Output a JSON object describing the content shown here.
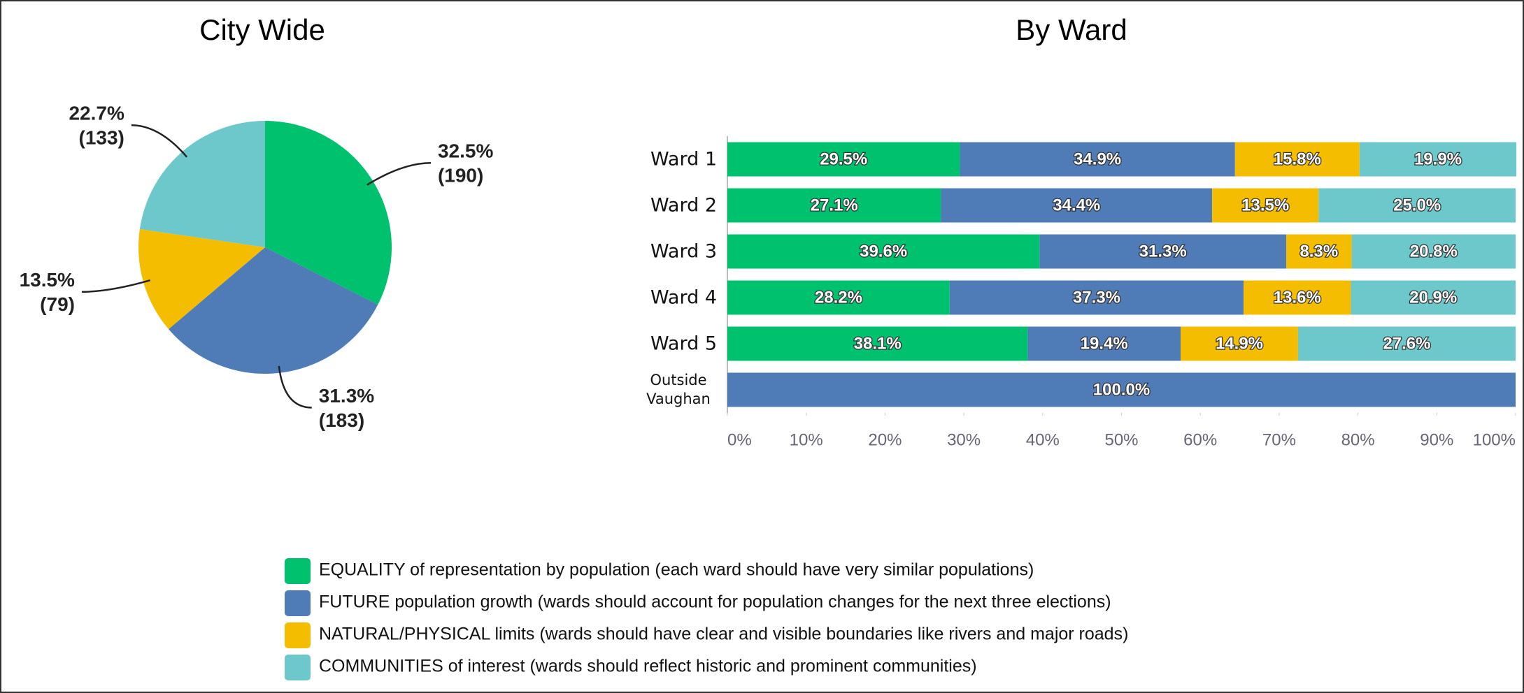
{
  "chart_data": [
    {
      "type": "pie",
      "title": "City Wide",
      "values": [
        32.5,
        31.3,
        13.5,
        22.7
      ],
      "value_labels": [
        "32.5%",
        "31.3%",
        "13.5%",
        "22.7%"
      ],
      "counts": [
        190,
        183,
        79,
        133
      ],
      "count_labels": [
        "(190)",
        "(183)",
        "(79)",
        "(133)"
      ],
      "colors": [
        "#00c16e",
        "#4f7bb7",
        "#f5bd00",
        "#6cc8ca"
      ]
    },
    {
      "type": "stacked_barh",
      "title": "By Ward",
      "categories": [
        "Ward 1",
        "Ward 2",
        "Ward 3",
        "Ward 4",
        "Ward 5",
        "Outside Vaughan"
      ],
      "series": [
        {
          "name": "EQUALITY of representation by population (each ward should have very similar populations)",
          "color": "#00c16e",
          "values": [
            29.5,
            27.1,
            39.6,
            28.2,
            38.1,
            null
          ],
          "value_labels": [
            "29.5%",
            "27.1%",
            "39.6%",
            "28.2%",
            "38.1%",
            null
          ]
        },
        {
          "name": "FUTURE population growth (wards should account for population changes for the next three elections)",
          "color": "#4f7bb7",
          "values": [
            34.9,
            34.4,
            31.3,
            37.3,
            19.4,
            100.0
          ],
          "value_labels": [
            "34.9%",
            "34.4%",
            "31.3%",
            "37.3%",
            "19.4%",
            "100.0%"
          ]
        },
        {
          "name": "NATURAL/PHYSICAL limits (wards should have clear and visible boundaries like rivers and major roads)",
          "color": "#f5bd00",
          "values": [
            15.8,
            13.5,
            8.3,
            13.6,
            14.9,
            null
          ],
          "value_labels": [
            "15.8%",
            "13.5%",
            "8.3%",
            "13.6%",
            "14.9%",
            null
          ]
        },
        {
          "name": "COMMUNITIES of interest (wards should reflect historic and prominent communities)",
          "color": "#6cc8ca",
          "values": [
            19.9,
            25.0,
            20.8,
            20.9,
            27.6,
            null
          ],
          "value_labels": [
            "19.9%",
            "25.0%",
            "20.8%",
            "20.9%",
            "27.6%",
            null
          ]
        }
      ],
      "xlim": [
        0,
        100
      ],
      "xticks": [
        {
          "value": 0,
          "label": "0%"
        },
        {
          "value": 10,
          "label": "10%"
        },
        {
          "value": 20,
          "label": "20%"
        },
        {
          "value": 30,
          "label": "30%"
        },
        {
          "value": 40,
          "label": "40%"
        },
        {
          "value": 50,
          "label": "50%"
        },
        {
          "value": 60,
          "label": "60%"
        },
        {
          "value": 70,
          "label": "70%"
        },
        {
          "value": 80,
          "label": "80%"
        },
        {
          "value": 90,
          "label": "90%"
        },
        {
          "value": 100,
          "label": "100%"
        }
      ]
    }
  ]
}
